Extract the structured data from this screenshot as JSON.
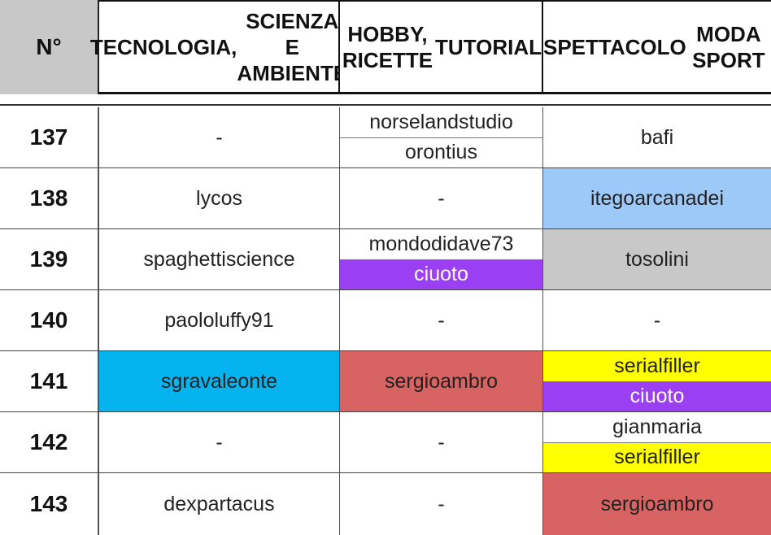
{
  "header": {
    "num": "N°",
    "col1": [
      "TECNOLOGIA,",
      "SCIENZA E AMBIENTE"
    ],
    "col2": [
      "HOBBY, RICETTE",
      "TUTORIAL"
    ],
    "col3": [
      "SPETTACOLO",
      "MODA SPORT"
    ]
  },
  "rows": [
    {
      "num": "137",
      "c1": "-",
      "c2a": "norselandstudio",
      "c2b": "orontius",
      "c3": "bafi"
    },
    {
      "num": "138",
      "c1": "lycos",
      "c2": "-",
      "c3": "itegoarcanadei"
    },
    {
      "num": "139",
      "c1": "spaghettiscience",
      "c2a": "mondodidave73",
      "c2b": "ciuoto",
      "c3": "tosolini"
    },
    {
      "num": "140",
      "c1": "paololuffy91",
      "c2": "-",
      "c3": "-"
    },
    {
      "num": "141",
      "c1": "sgravaleonte",
      "c2": "sergioambro",
      "c3a": "serialfiller",
      "c3b": "ciuoto"
    },
    {
      "num": "142",
      "c1": "-",
      "c2": "-",
      "c3a": "gianmaria",
      "c3b": "serialfiller"
    },
    {
      "num": "143",
      "c1": "dexpartacus",
      "c2": "-",
      "c3": "sergioambro"
    }
  ],
  "colors": {
    "lightblue": "#9dc9f8",
    "cyan": "#05b3ee",
    "red": "#d76363",
    "gray": "#c8c8c8",
    "purple": "#9a3ff2",
    "yellow": "#ffff00"
  }
}
